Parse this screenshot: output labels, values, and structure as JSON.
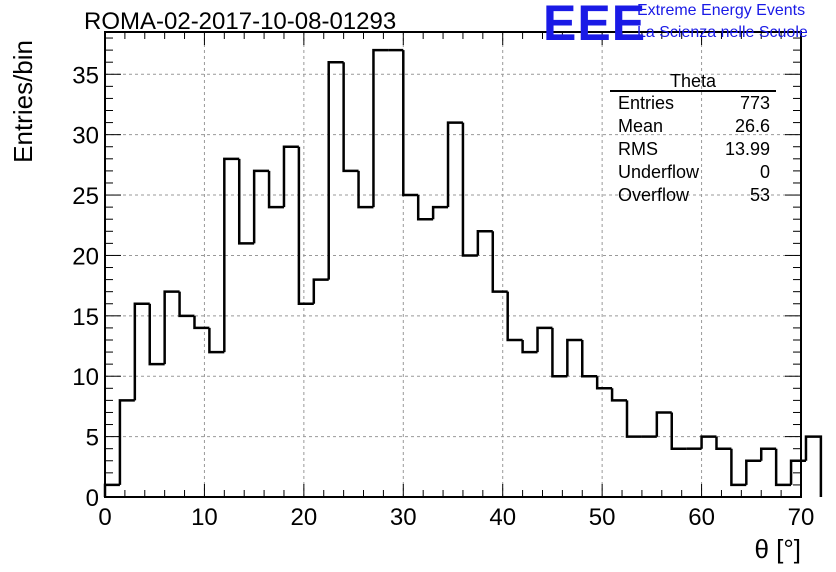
{
  "title": "ROMA-02-2017-10-08-01293",
  "logo": {
    "mark": "EEE",
    "line1": "Extreme Energy Events",
    "line2": "La Scienza nelle Scuole"
  },
  "stats_box": {
    "title": "Theta",
    "rows": [
      {
        "label": "Entries",
        "value": "773"
      },
      {
        "label": "Mean",
        "value": "26.6"
      },
      {
        "label": "RMS",
        "value": "13.99"
      },
      {
        "label": "Underflow",
        "value": "0"
      },
      {
        "label": "Overflow",
        "value": "53"
      }
    ]
  },
  "chart_data": {
    "type": "bar",
    "style": "step-histogram",
    "xlabel": "θ [°]",
    "ylabel": "Entries/bin",
    "xlim": [
      0,
      70
    ],
    "ylim": [
      0,
      38.5
    ],
    "x_ticks": [
      0,
      10,
      20,
      30,
      40,
      50,
      60,
      70
    ],
    "y_ticks": [
      0,
      5,
      10,
      15,
      20,
      25,
      30,
      35
    ],
    "grid": true,
    "bin_width": 1.5,
    "x_start": 0,
    "values": [
      1,
      8,
      16,
      11,
      17,
      15,
      14,
      12,
      28,
      21,
      27,
      24,
      29,
      16,
      18,
      36,
      27,
      24,
      37,
      37,
      25,
      23,
      24,
      31,
      20,
      22,
      17,
      13,
      12,
      14,
      10,
      13,
      10,
      9,
      8,
      5,
      5,
      7,
      4,
      4,
      5,
      4,
      1,
      3,
      4,
      1,
      3,
      5
    ],
    "line_color": "#000000",
    "grid_color": "#999999"
  }
}
